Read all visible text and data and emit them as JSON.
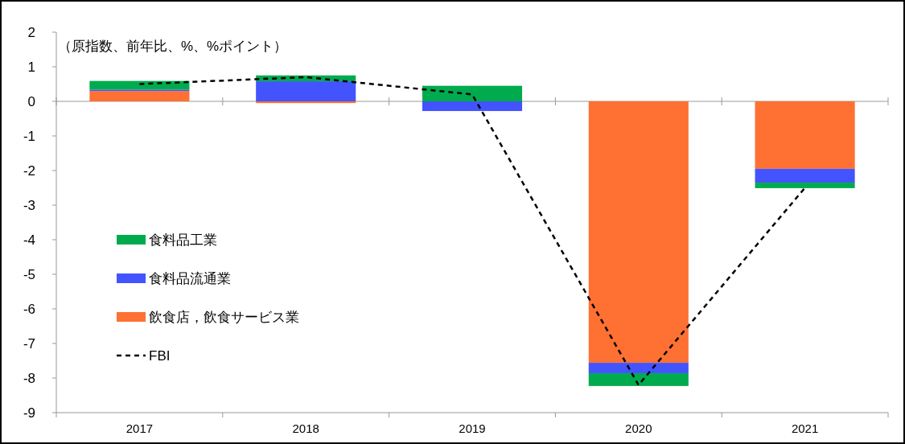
{
  "chart_data": {
    "type": "bar",
    "stacked": true,
    "ylabel": "（原指数、前年比、%、%ポイント）",
    "categories": [
      "2017",
      "2018",
      "2019",
      "2020",
      "2021"
    ],
    "series": [
      {
        "name": "飲食店，飲食サービス業",
        "color": "#ff7033",
        "values": [
          0.3,
          -0.05,
          0,
          -7.56,
          -1.95
        ]
      },
      {
        "name": "食料品流通業",
        "color": "#4354ff",
        "values": [
          0.04,
          0.58,
          -0.28,
          -0.3,
          -0.4
        ]
      },
      {
        "name": "食料品工業",
        "color": "#00ab4e",
        "values": [
          0.25,
          0.17,
          0.45,
          -0.37,
          -0.16
        ]
      },
      {
        "name": "FBI",
        "type": "line",
        "color": "#000000",
        "line_style": "dashed",
        "values": [
          0.5,
          0.7,
          0.2,
          -8.2,
          -2.5
        ]
      }
    ],
    "ylim": [
      -9,
      2
    ],
    "yticks": [
      2,
      1,
      0,
      -1,
      -2,
      -3,
      -4,
      -5,
      -6,
      -7,
      -8,
      -9
    ],
    "legend": "left"
  }
}
